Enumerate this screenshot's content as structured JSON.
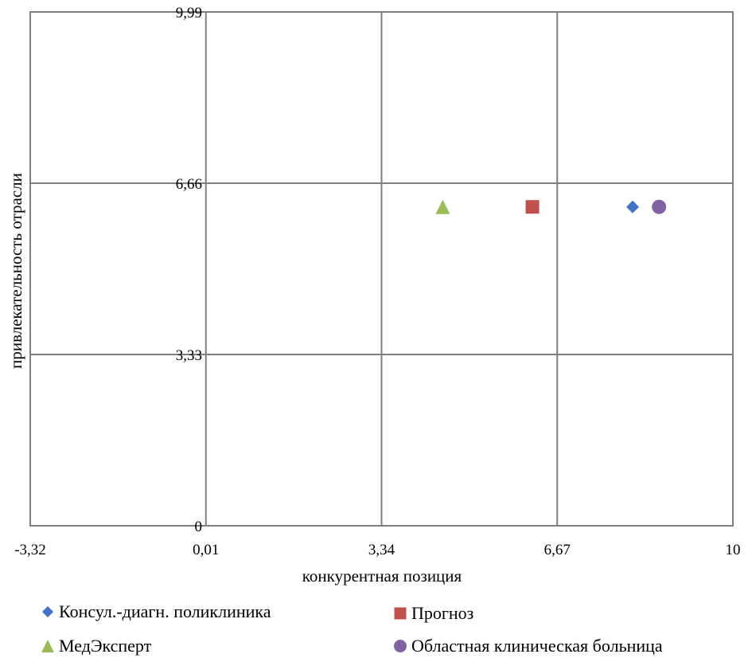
{
  "chart_data": {
    "type": "scatter",
    "title": "",
    "xlabel": "конкурентная позиция",
    "ylabel": "привлекательность отрасли",
    "xlim": [
      -3.32,
      10
    ],
    "ylim": [
      0,
      9.99
    ],
    "x_ticks": [
      -3.32,
      0.01,
      3.34,
      6.67,
      10
    ],
    "x_tick_labels": [
      "-3,32",
      "0,01",
      "3,34",
      "6,67",
      "10"
    ],
    "y_ticks": [
      0,
      3.33,
      6.66,
      9.99
    ],
    "y_tick_labels": [
      "0",
      "3,33",
      "6,66",
      "9,99"
    ],
    "grid": true,
    "legend_position": "bottom",
    "series": [
      {
        "name": "Консул.-диагн. поликлиника",
        "marker": "diamond",
        "color": "#4472C4",
        "x": 8.1,
        "y": 6.2
      },
      {
        "name": "Прогноз",
        "marker": "square",
        "color": "#C0504D",
        "x": 6.2,
        "y": 6.2
      },
      {
        "name": "МедЭксперт",
        "marker": "triangle",
        "color": "#9BBB59",
        "x": 4.5,
        "y": 6.2
      },
      {
        "name": "Областная клиническая больница",
        "marker": "circle",
        "color": "#8064A2",
        "x": 8.6,
        "y": 6.2
      }
    ]
  }
}
